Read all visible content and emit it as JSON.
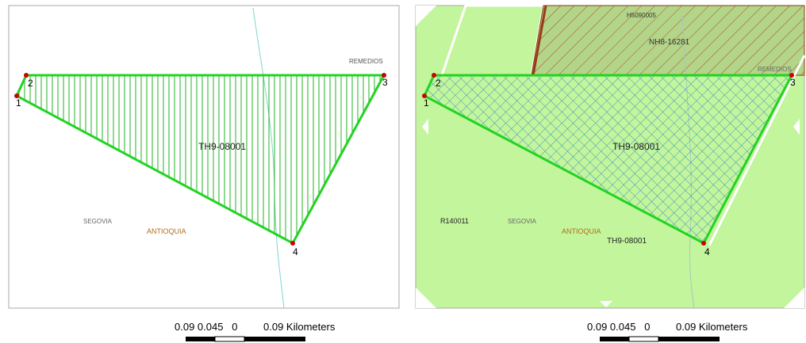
{
  "panels": [
    {
      "id": "left",
      "colors": {
        "background": "#ffffff",
        "frame": "#a9a9a9",
        "boundary": "#22d322",
        "hatch": "#22b322",
        "vertex": "#cc0000",
        "river": "#7fd6cf"
      },
      "vertices": [
        "1",
        "2",
        "3",
        "4"
      ],
      "parcel_label": "TH9-08001",
      "places": [
        "REMEDIOS",
        "SEGOVIA",
        "ANTIOQUIA"
      ],
      "scale_text": "0.09 0.045   0         0.09 Kilometers"
    },
    {
      "id": "right",
      "colors": {
        "background": "#c3f59d",
        "frame": "#a9a9a9",
        "boundary": "#22d322",
        "hatch": "#1f7fbf",
        "vertex": "#cc0000",
        "other_title": "#b24a1e",
        "river": "#a5c9bd"
      },
      "vertices": [
        "1",
        "2",
        "3",
        "4"
      ],
      "parcel_label": "TH9-08001",
      "other_titles": [
        "H5090005",
        "NH8-16281"
      ],
      "places": [
        "REMEDIOS",
        "SEGOVIA",
        "ANTIOQUIA"
      ],
      "extra_labels": [
        "R140011",
        "TH9-08001"
      ],
      "scale_text": "0.09 0.045   0         0.09 Kilometers"
    }
  ]
}
